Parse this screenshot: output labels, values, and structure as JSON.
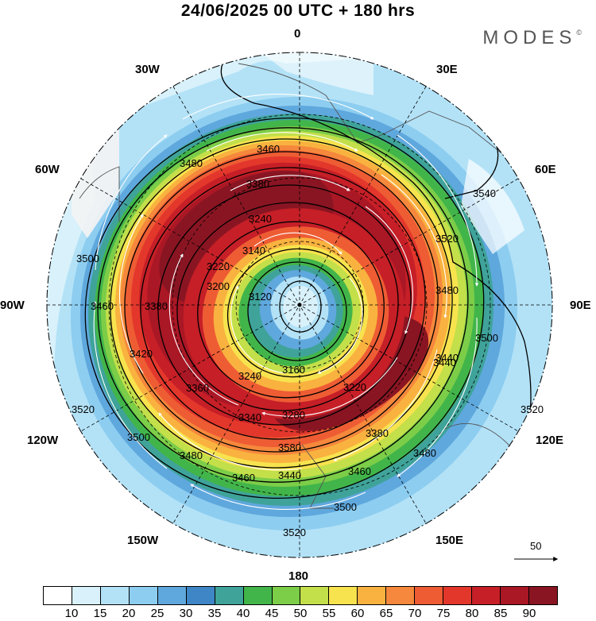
{
  "title": "24/06/2025  00 UTC  + 180 hrs",
  "brand": "MODES",
  "brand_mark": "©",
  "longitude_labels": {
    "top": "0",
    "tr30": "30E",
    "tr60": "60E",
    "right": "90E",
    "br120": "120E",
    "br150": "150E",
    "bottom": "180",
    "bl150": "150W",
    "bl120": "120W",
    "left": "90W",
    "tl60": "60W",
    "tl30": "30W"
  },
  "colorbar": {
    "colors": [
      "#ffffff",
      "#d8f1fb",
      "#b3e2f7",
      "#8dcdf0",
      "#5fa8dd",
      "#3f86c6",
      "#3fa39a",
      "#42b54a",
      "#7ccd48",
      "#c3df4a",
      "#f7e34e",
      "#f9b23f",
      "#f5883c",
      "#ee5c34",
      "#e3372c",
      "#c61f27",
      "#aa1725",
      "#8a1522"
    ],
    "ticks": [
      "10",
      "15",
      "20",
      "25",
      "30",
      "35",
      "40",
      "45",
      "50",
      "55",
      "60",
      "65",
      "70",
      "75",
      "80",
      "85",
      "90"
    ]
  },
  "contour_labels": [
    "3460",
    "3480",
    "3380",
    "3240",
    "3220",
    "3200",
    "3140",
    "3120",
    "3160",
    "3240",
    "3280",
    "3220",
    "3340",
    "3360",
    "3380",
    "3420",
    "3460",
    "3500",
    "3520",
    "3540",
    "3520",
    "3480",
    "3440",
    "3500",
    "3520",
    "3500",
    "3480",
    "3460",
    "3440",
    "3460",
    "3500",
    "3520",
    "3480",
    "3440",
    "3380",
    "3580"
  ],
  "reference_vector": {
    "label": "50"
  }
}
